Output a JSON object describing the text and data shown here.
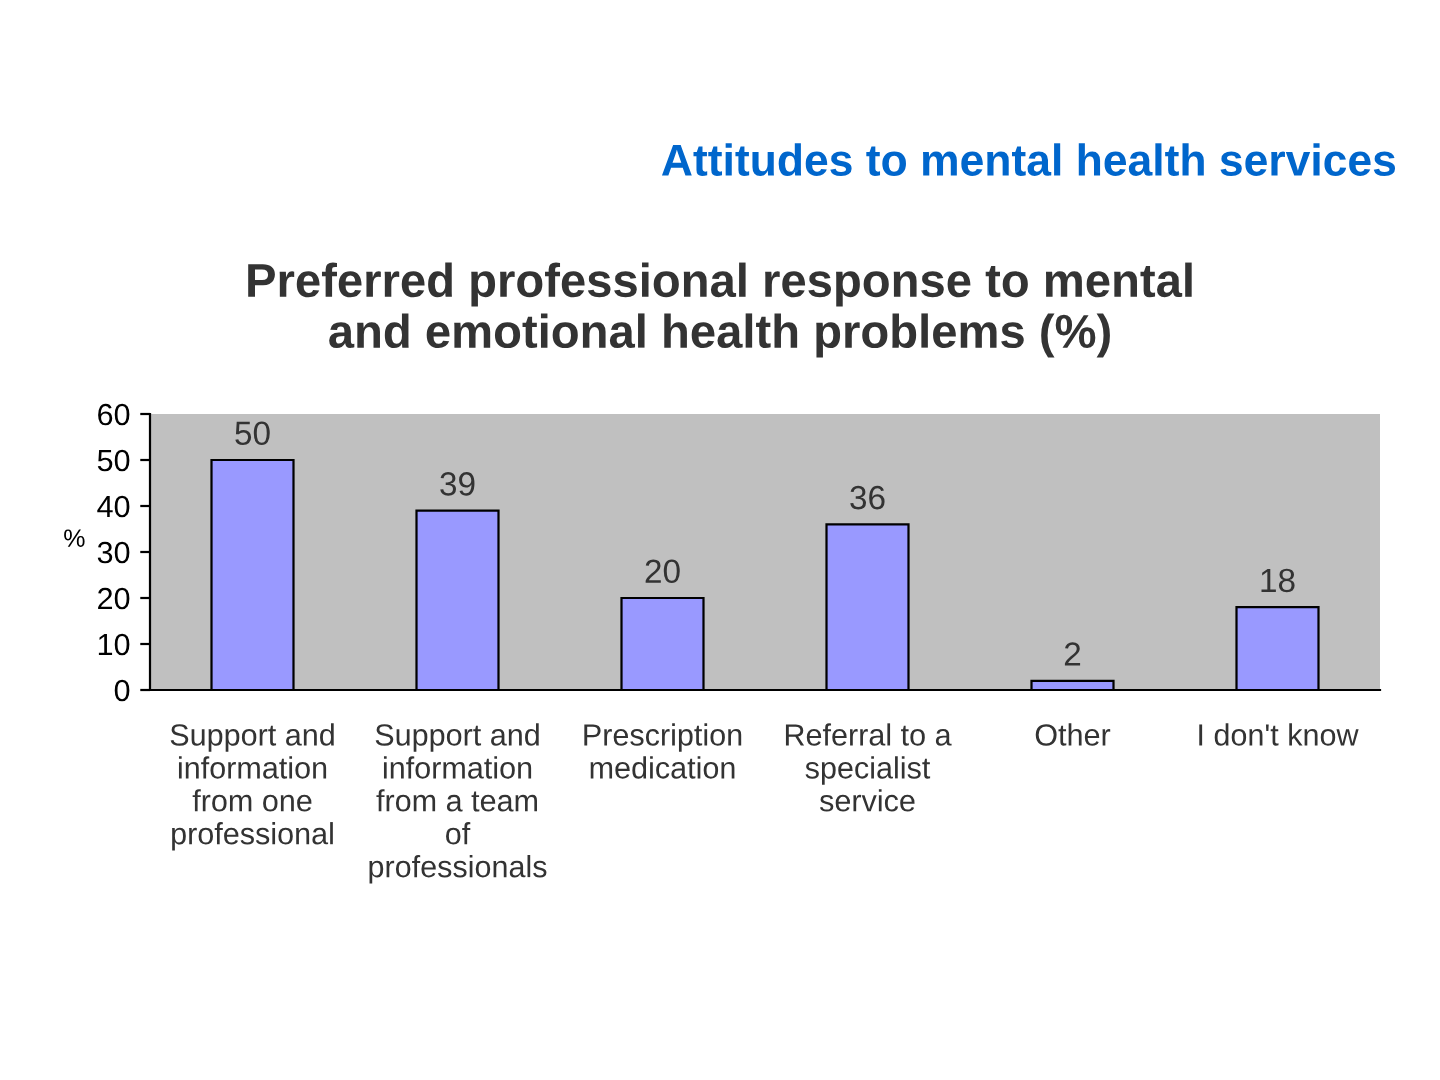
{
  "chart_data": {
    "type": "bar",
    "title": "Preferred professional response to mental\nand emotional health problems (%)",
    "subtitle": "Attitudes to mental health services",
    "ylabel": "%",
    "categories": [
      "Support and\ninformation\nfrom one\nprofessional",
      "Support and\ninformation\nfrom a team\nof\nprofessionals",
      "Prescription\nmedication",
      "Referral to a\nspecialist\nservice",
      "Other",
      "I don't know"
    ],
    "values": [
      50,
      39,
      20,
      36,
      2,
      18
    ],
    "color": "#9999ff",
    "ylim": [
      0,
      60
    ],
    "yticks": [
      0,
      10,
      20,
      30,
      40,
      50,
      60
    ],
    "grid": false,
    "data_labels": true
  }
}
